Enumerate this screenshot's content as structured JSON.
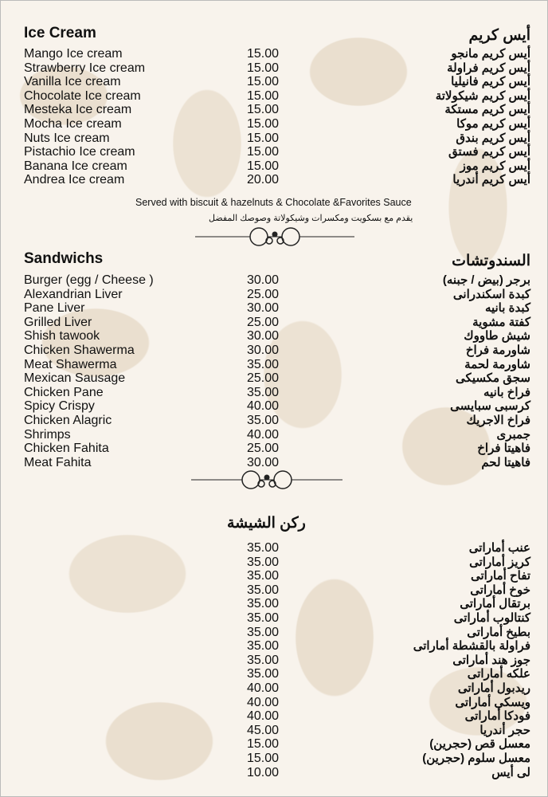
{
  "ice_cream": {
    "title": "Ice Cream",
    "title_ar": "أيس كريم",
    "items": [
      {
        "name": "Mango Ice cream",
        "price": "15.00",
        "name_ar": "أيس كريم مانجو"
      },
      {
        "name": "Strawberry Ice cream",
        "price": "15.00",
        "name_ar": "أيس كريم فراولة"
      },
      {
        "name": "Vanilla Ice cream",
        "price": "15.00",
        "name_ar": "أيس كريم فانيليا"
      },
      {
        "name": "Chocolate Ice cream",
        "price": "15.00",
        "name_ar": "أيس كريم شيكولاتة"
      },
      {
        "name": "Mesteka Ice cream",
        "price": "15.00",
        "name_ar": "أيس كريم مستكة"
      },
      {
        "name": "Mocha Ice cream",
        "price": "15.00",
        "name_ar": "أيس كريم موكا"
      },
      {
        "name": "Nuts Ice cream",
        "price": "15.00",
        "name_ar": "أيس كريم بندق"
      },
      {
        "name": "Pistachio Ice cream",
        "price": "15.00",
        "name_ar": "أيس كريم فستق"
      },
      {
        "name": "Banana Ice cream",
        "price": "15.00",
        "name_ar": "أيس كريم موز"
      },
      {
        "name": "Andrea Ice cream",
        "price": "20.00",
        "name_ar": "أيس كريم أندريا"
      }
    ],
    "note": "Served with biscuit & hazelnuts & Chocolate &Favorites Sauce",
    "note_ar": "يقدم مع بسكويت ومكسرات وشيكولاتة وصوصك المفضل"
  },
  "sandwiches": {
    "title": "Sandwichs",
    "title_ar": "السندوتشات",
    "items": [
      {
        "name": "Burger (egg / Cheese )",
        "price": "30.00",
        "name_ar": "برجر (بيض / جبنه)"
      },
      {
        "name": "Alexandrian Liver",
        "price": "25.00",
        "name_ar": "كبدة اسكندرانى"
      },
      {
        "name": "Pane Liver",
        "price": "30.00",
        "name_ar": "كبدة بانيه"
      },
      {
        "name": "Grilled Liver",
        "price": "25.00",
        "name_ar": "كفتة مشوية"
      },
      {
        "name": "Shish tawook",
        "price": "30.00",
        "name_ar": "شيش طاووك"
      },
      {
        "name": "Chicken Shawerma",
        "price": "30.00",
        "name_ar": "شاورمة فراخ"
      },
      {
        "name": "Meat Shawerma",
        "price": "35.00",
        "name_ar": "شاورمة لحمة"
      },
      {
        "name": "Mexican Sausage",
        "price": "25.00",
        "name_ar": "سجق مكسيكى"
      },
      {
        "name": "Chicken Pane",
        "price": "35.00",
        "name_ar": "فراخ بانيه"
      },
      {
        "name": "Spicy Crispy",
        "price": "40.00",
        "name_ar": "كرسبى سبايسى"
      },
      {
        "name": "Chicken Alagric",
        "price": "35.00",
        "name_ar": "فراخ الاجريك"
      },
      {
        "name": "Shrimps",
        "price": "40.00",
        "name_ar": "جمبرى"
      },
      {
        "name": "Chicken Fahita",
        "price": "25.00",
        "name_ar": "فاهيتا فراخ"
      },
      {
        "name": "Meat Fahita",
        "price": "30.00",
        "name_ar": "فاهيتا لحم"
      }
    ]
  },
  "shisha": {
    "title_ar": "ركن الشيشة",
    "items": [
      {
        "price": "35.00",
        "name_ar": "عنب أماراتى"
      },
      {
        "price": "35.00",
        "name_ar": "كريز أماراتى"
      },
      {
        "price": "35.00",
        "name_ar": "تفاح أماراتى"
      },
      {
        "price": "35.00",
        "name_ar": "خوخ أماراتى"
      },
      {
        "price": "35.00",
        "name_ar": "برتقال أماراتى"
      },
      {
        "price": "35.00",
        "name_ar": "كنتالوب أماراتى"
      },
      {
        "price": "35.00",
        "name_ar": "بطيخ أماراتى"
      },
      {
        "price": "35.00",
        "name_ar": "فراولة بالقشطة أماراتى"
      },
      {
        "price": "35.00",
        "name_ar": "جوز هند أماراتى"
      },
      {
        "price": "35.00",
        "name_ar": "علكه أماراتى"
      },
      {
        "price": "40.00",
        "name_ar": "ريدبول أماراتى"
      },
      {
        "price": "40.00",
        "name_ar": "ويسكى أماراتى"
      },
      {
        "price": "40.00",
        "name_ar": "فودكا أماراتى"
      },
      {
        "price": "45.00",
        "name_ar": "حجر أندريا"
      },
      {
        "price": "15.00",
        "name_ar": "معسل قص (حجرين)"
      },
      {
        "price": "15.00",
        "name_ar": "معسل سلوم (حجرين)"
      },
      {
        "price": "10.00",
        "name_ar": "لى أيس"
      }
    ]
  },
  "colors": {
    "background": "#f8f3ec",
    "pattern": "#eadfcf",
    "text": "#111111"
  }
}
